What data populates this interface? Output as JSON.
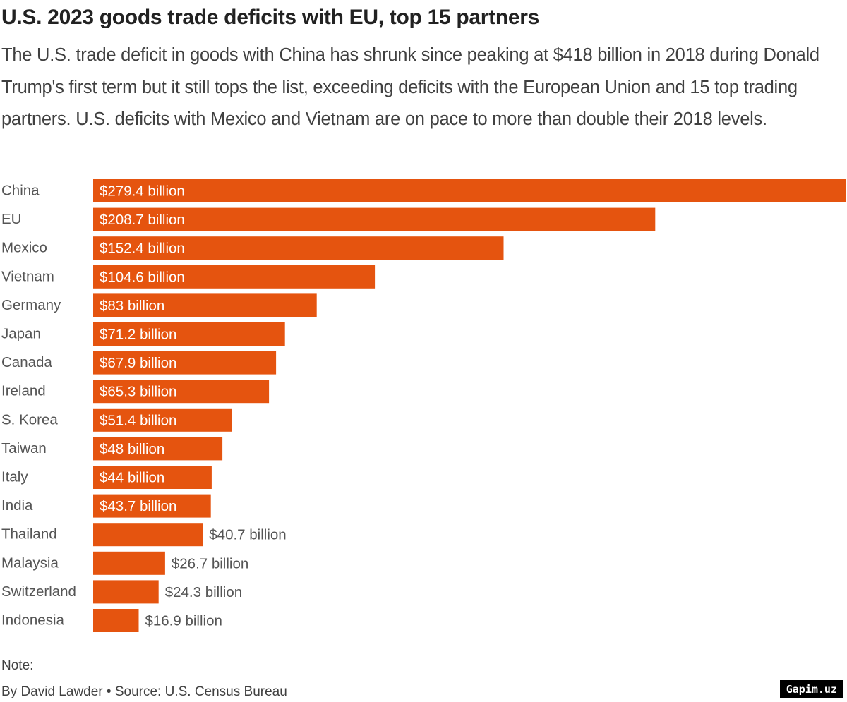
{
  "title": "U.S. 2023 goods trade deficits with EU, top 15 partners",
  "subtitle": "The U.S. trade deficit in goods with China has shrunk since peaking at $418 billion in 2018 during Donald Trump's first term but it still tops the list, exceeding deficits with the European Union and 15 top trading partners. U.S. deficits with Mexico and Vietnam are on pace to more than double their 2018 levels.",
  "note_label": "Note:",
  "credit": "By David Lawder • Source: U.S. Census Bureau",
  "watermark": "Gapim.uz",
  "colors": {
    "bar": "#e5540f",
    "label_inside": "#ffffff",
    "label_outside": "#555555",
    "category_text": "#555555"
  },
  "chart_data": {
    "type": "bar",
    "orientation": "horizontal",
    "categories": [
      "China",
      "EU",
      "Mexico",
      "Vietnam",
      "Germany",
      "Japan",
      "Canada",
      "Ireland",
      "S. Korea",
      "Taiwan",
      "Italy",
      "India",
      "Thailand",
      "Malaysia",
      "Switzerland",
      "Indonesia"
    ],
    "values": [
      279.4,
      208.7,
      152.4,
      104.6,
      83,
      71.2,
      67.9,
      65.3,
      51.4,
      48,
      44,
      43.7,
      40.7,
      26.7,
      24.3,
      16.9
    ],
    "data_labels": [
      "$279.4 billion",
      "$208.7 billion",
      "$152.4 billion",
      "$104.6 billion",
      "$83 billion",
      "$71.2 billion",
      "$67.9 billion",
      "$65.3 billion",
      "$51.4 billion",
      "$48 billion",
      "$44 billion",
      "$43.7 billion",
      "$40.7 billion",
      "$26.7 billion",
      "$24.3 billion",
      "$16.9 billion"
    ],
    "unit": "billion USD",
    "xlim": [
      0,
      279.4
    ],
    "grid": false,
    "legend": false
  }
}
